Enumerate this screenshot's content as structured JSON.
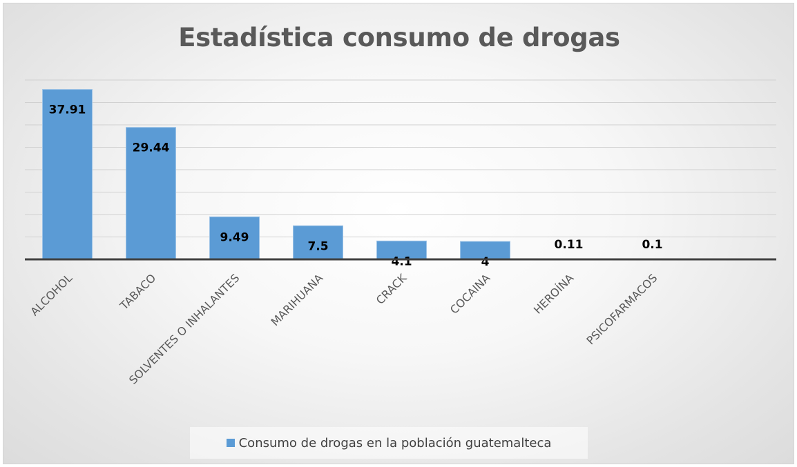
{
  "chart_data": {
    "type": "bar",
    "title": "Estadística consumo de drogas",
    "categories": [
      "ALCOHOL",
      "TABACO",
      "SOLVENTES O INHALANTES",
      "MARIHUANA",
      "CRACK",
      "COCAINA",
      "HEROÍNA",
      "PSICOFARMACOS"
    ],
    "series": [
      {
        "name": "Consumo de drogas en la población guatemalteca",
        "values": [
          37.91,
          29.44,
          9.49,
          7.5,
          4.1,
          4,
          0.11,
          0.1
        ],
        "color": "#5b9bd5"
      }
    ],
    "data_labels": [
      "37.91",
      "29.44",
      "9.49",
      "7.5",
      "4.1",
      "4",
      "0.11",
      "0.1"
    ],
    "xlabel": "",
    "ylabel": "",
    "ylim": [
      0,
      40
    ],
    "grid": true,
    "legend_position": "bottom"
  }
}
